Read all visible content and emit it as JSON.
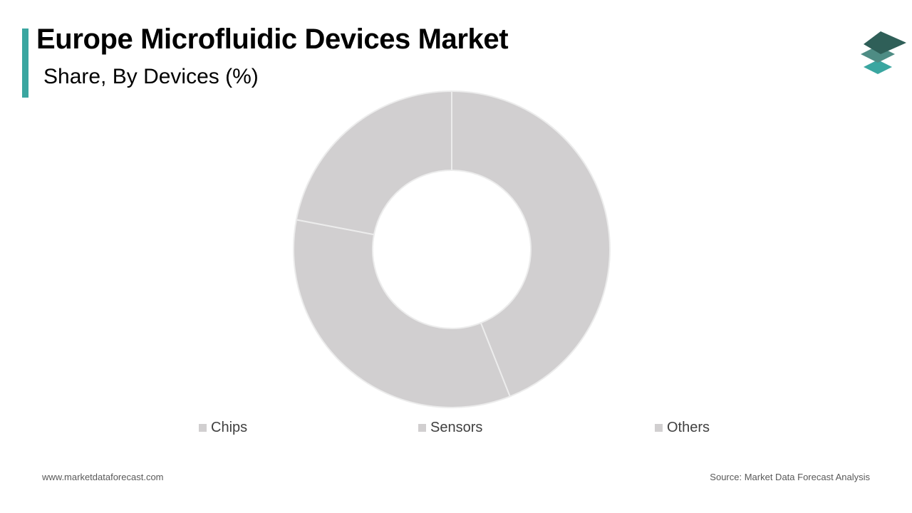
{
  "header": {
    "title": "Europe Microfluidic Devices Market",
    "subtitle": "Share, By Devices (%)"
  },
  "colors": {
    "accent": "#3aa6a0",
    "slice": "#d1cfd0",
    "slice_border": "#ececec",
    "logo_dark": "#2f5f58",
    "logo_mid": "#4e8c84",
    "logo_light": "#3aa6a0"
  },
  "logo": {
    "icon": "stacked-layers-icon"
  },
  "chart_data": {
    "type": "pie",
    "donut": true,
    "categories": [
      "Chips",
      "Sensors",
      "Others"
    ],
    "values": [
      44,
      34,
      22
    ],
    "legend": "bottom"
  },
  "footer": {
    "website": "www.marketdataforecast.com",
    "source": "Source: Market Data Forecast Analysis"
  }
}
